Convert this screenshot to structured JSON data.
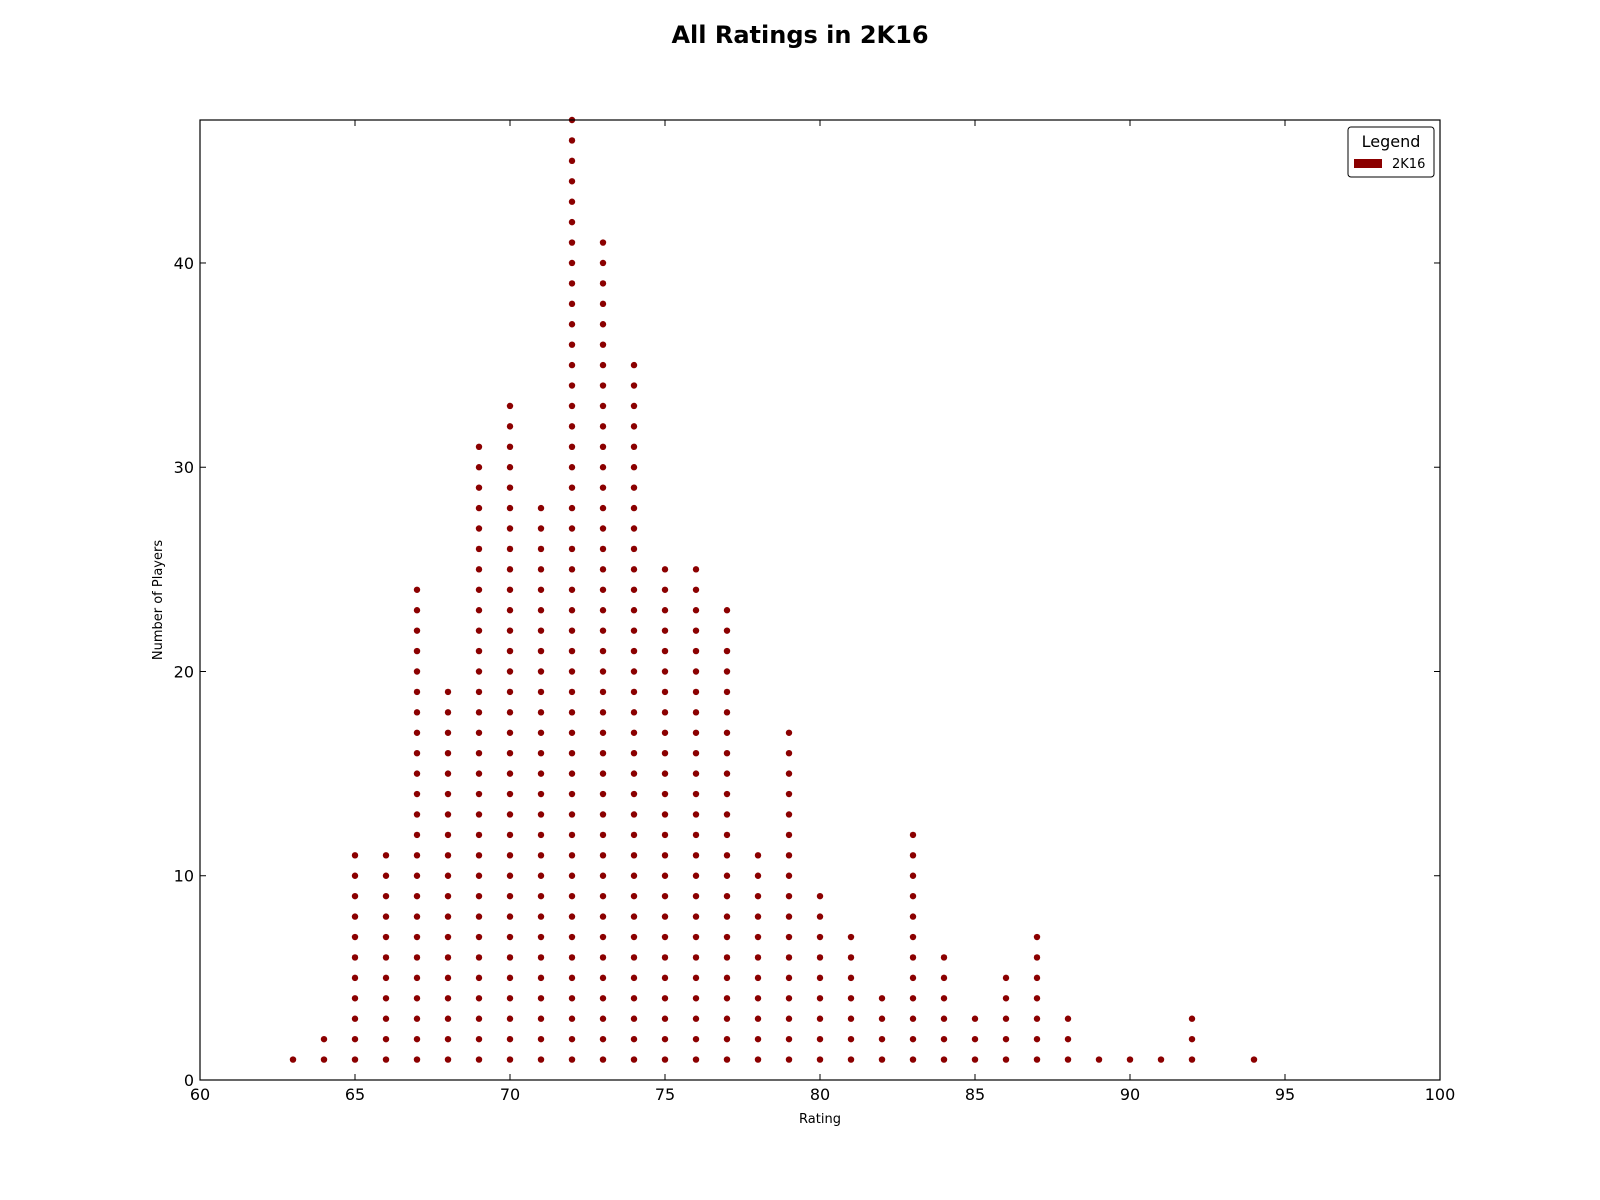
{
  "chart_data": {
    "type": "scatter",
    "title": "All Ratings in 2K16",
    "xlabel": "Rating",
    "ylabel": "Number of Players",
    "xlim": [
      60,
      100
    ],
    "ylim": [
      0,
      47
    ],
    "xticks": [
      "60",
      "65",
      "70",
      "75",
      "80",
      "85",
      "90",
      "95",
      "100"
    ],
    "yticks": [
      "0",
      "10",
      "20",
      "30",
      "40"
    ],
    "grid": false,
    "legend": {
      "title": "Legend",
      "position": "top-right",
      "entries": [
        "2K16"
      ]
    },
    "color": "#8b0000",
    "encoding": "For each rating, one point is drawn at every y from 1 up to the count of players with that rating.",
    "series": [
      {
        "name": "2K16",
        "ratings": [
          63,
          64,
          65,
          66,
          67,
          68,
          69,
          70,
          71,
          72,
          73,
          74,
          75,
          76,
          77,
          78,
          79,
          80,
          81,
          82,
          83,
          84,
          85,
          86,
          87,
          88,
          89,
          90,
          91,
          92,
          94
        ],
        "counts": [
          1,
          2,
          11,
          11,
          24,
          19,
          31,
          33,
          28,
          47,
          41,
          35,
          25,
          25,
          23,
          11,
          17,
          9,
          7,
          4,
          12,
          6,
          3,
          5,
          7,
          3,
          1,
          1,
          1,
          3,
          1
        ]
      }
    ]
  }
}
